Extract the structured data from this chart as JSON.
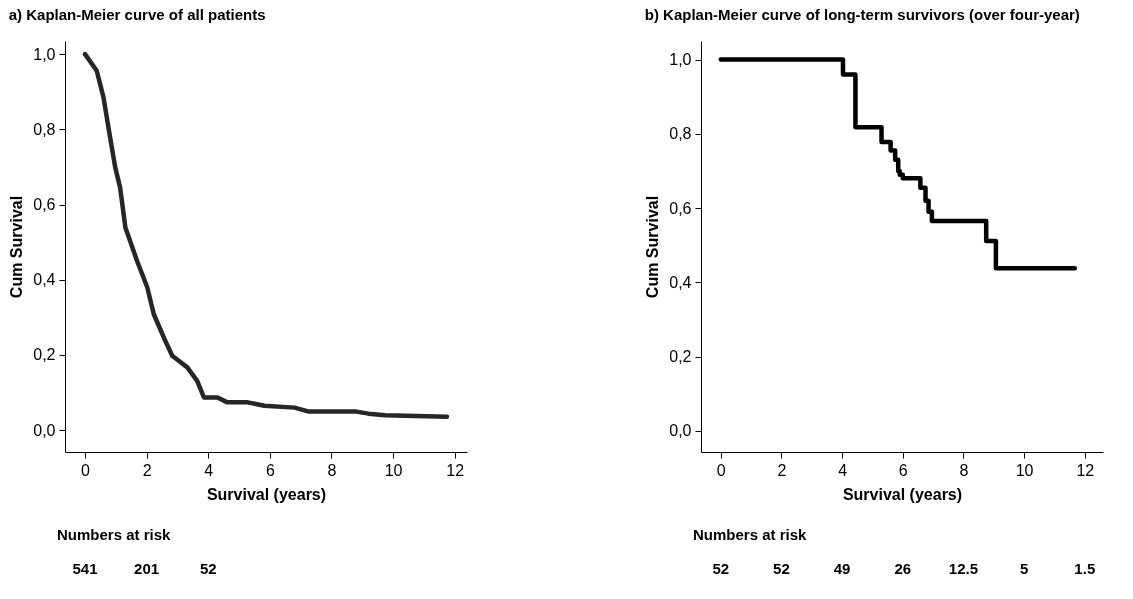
{
  "chart_data": [
    {
      "type": "line",
      "title": "a) Kaplan-Meier curve of all patients",
      "xlabel": "Survival (years)",
      "ylabel": "Cum Survival",
      "x": [
        0,
        0.38,
        0.6,
        0.76,
        0.98,
        1.14,
        1.31,
        1.69,
        2.02,
        2.23,
        2.56,
        2.83,
        3.32,
        3.64,
        3.86,
        4.3,
        4.62,
        5.28,
        5.82,
        6.8,
        7.24,
        8.76,
        9.2,
        9.74,
        11.75
      ],
      "series": [
        {
          "color": "#262626",
          "values": [
            1.0,
            0.956,
            0.885,
            0.805,
            0.699,
            0.645,
            0.539,
            0.45,
            0.38,
            0.309,
            0.246,
            0.198,
            0.167,
            0.131,
            0.087,
            0.087,
            0.074,
            0.074,
            0.065,
            0.06,
            0.05,
            0.05,
            0.044,
            0.04,
            0.036
          ]
        }
      ],
      "xlim": [
        -0.65,
        12.4
      ],
      "ylim": [
        -0.058,
        1.035
      ],
      "xticks": [
        0,
        2,
        4,
        6,
        8,
        10,
        12
      ],
      "yticks": [
        {
          "value": 0,
          "label": "0,0"
        },
        {
          "value": 0.2,
          "label": "0,2"
        },
        {
          "value": 0.4,
          "label": "0,4"
        },
        {
          "value": 0.6,
          "label": "0,6"
        },
        {
          "value": 0.8,
          "label": "0,8"
        },
        {
          "value": 1,
          "label": "1,0"
        }
      ],
      "annotations": [
        "Numbers at risk",
        "541",
        "201",
        "52"
      ]
    },
    {
      "type": "step",
      "title": "b) Kaplan-Meier curve of long-term survivors\n(over four-year)",
      "xlabel": "Survival (years)",
      "ylabel": "Cum Survival",
      "x": [
        0,
        4.03,
        4.44,
        5.3,
        5.6,
        5.75,
        5.85,
        5.9,
        6.0,
        6.58,
        6.75,
        6.85,
        6.96,
        8.75,
        9.07,
        11.67
      ],
      "series": [
        {
          "color": "#000000",
          "values": [
            1.0,
            0.96,
            0.818,
            0.778,
            0.755,
            0.73,
            0.7,
            0.69,
            0.68,
            0.655,
            0.62,
            0.59,
            0.565,
            0.511,
            0.438,
            0.438
          ]
        }
      ],
      "xlim": [
        -0.65,
        12.6
      ],
      "ylim": [
        -0.057,
        1.05
      ],
      "xticks": [
        0,
        2,
        4,
        6,
        8,
        10,
        12
      ],
      "yticks": [
        {
          "value": 0,
          "label": "0,0"
        },
        {
          "value": 0.2,
          "label": "0,2"
        },
        {
          "value": 0.4,
          "label": "0,4"
        },
        {
          "value": 0.6,
          "label": "0,6"
        },
        {
          "value": 0.8,
          "label": "0,8"
        },
        {
          "value": 1,
          "label": "1,0"
        }
      ],
      "annotations": [
        "Numbers at risk",
        "52",
        "52",
        "49",
        "26",
        "12.5",
        "5",
        "1.5"
      ]
    }
  ]
}
